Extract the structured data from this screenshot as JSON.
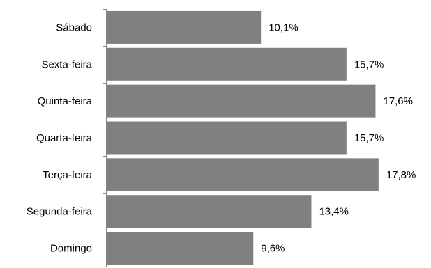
{
  "chart_data": {
    "type": "bar",
    "orientation": "horizontal",
    "categories": [
      "Sábado",
      "Sexta-feira",
      "Quinta-feira",
      "Quarta-feira",
      "Terça-feira",
      "Segunda-feira",
      "Domingo"
    ],
    "values": [
      10.1,
      15.7,
      17.6,
      15.7,
      17.8,
      13.4,
      9.6
    ],
    "data_labels": [
      "10,1%",
      "15,7%",
      "17,6%",
      "15,7%",
      "17,8%",
      "13,4%",
      "9,6%"
    ],
    "value_unit": "%",
    "xlim": [
      0,
      20
    ],
    "grid": false,
    "legend": "none",
    "bar_color": "#808080",
    "axis_color": "#868686"
  }
}
